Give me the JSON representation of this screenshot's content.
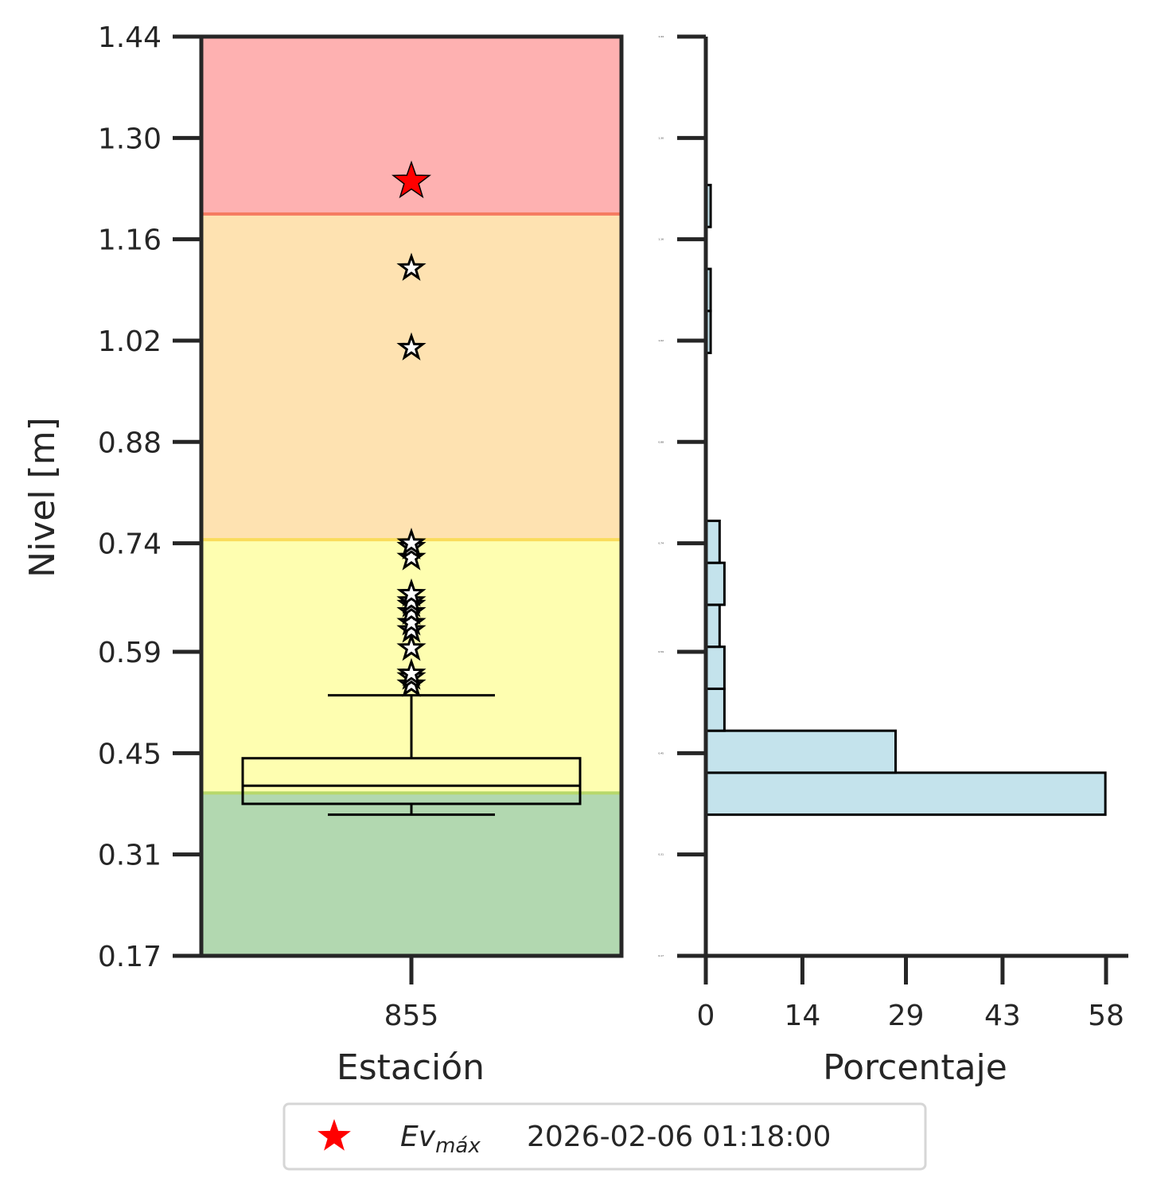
{
  "chart_data": [
    {
      "type": "box",
      "ylabel": "Nivel [m]",
      "xlabel": "Estación",
      "categories": [
        "855"
      ],
      "ylim": [
        0.17,
        1.44
      ],
      "yticks": [
        "0.17",
        "0.31",
        "0.45",
        "0.59",
        "0.74",
        "0.88",
        "1.02",
        "1.16",
        "1.30",
        "1.44"
      ],
      "bands": [
        {
          "from": 0.17,
          "to": 0.395,
          "color": "#b2d8b0",
          "line": "#b7d86a"
        },
        {
          "from": 0.395,
          "to": 0.745,
          "color": "#fefeb0",
          "line": "#f9dc5c"
        },
        {
          "from": 0.745,
          "to": 1.195,
          "color": "#fee2b1",
          "line": "#f57a60"
        },
        {
          "from": 1.195,
          "to": 1.44,
          "color": "#feb1b1",
          "line": null
        }
      ],
      "box": {
        "whisker_low": 0.365,
        "q1": 0.38,
        "median": 0.405,
        "q3": 0.443,
        "whisker_high": 0.53
      },
      "outliers": [
        0.545,
        0.555,
        0.56,
        0.595,
        0.62,
        0.63,
        0.645,
        0.655,
        0.66,
        0.67,
        0.72,
        0.735,
        0.74,
        1.01,
        1.12
      ],
      "max_event": {
        "value": 1.24,
        "label": "Ev",
        "label_sub": "máx",
        "datetime": "2026-02-06 01:18:00",
        "color": "#ff0000"
      },
      "legend_position": "bottom-center"
    },
    {
      "type": "bar",
      "orientation": "horizontal",
      "xlabel": "Porcentaje",
      "xticks": [
        "0",
        "14",
        "29",
        "43",
        "58"
      ],
      "xlim": [
        0,
        58
      ],
      "ylim": [
        0.17,
        1.44
      ],
      "bin_edges": [
        0.365,
        0.423,
        0.481,
        0.539,
        0.597,
        0.655,
        0.713,
        0.771,
        0.829,
        0.887,
        0.945,
        1.003,
        1.061,
        1.119,
        1.177,
        1.235
      ],
      "values": [
        57.9,
        27.5,
        2.7,
        2.7,
        2.0,
        2.7,
        2.0,
        0.0,
        0.0,
        0.0,
        0.0,
        0.7,
        0.7,
        0.0,
        0.7
      ],
      "bar_color": "#c4e3ec"
    }
  ]
}
